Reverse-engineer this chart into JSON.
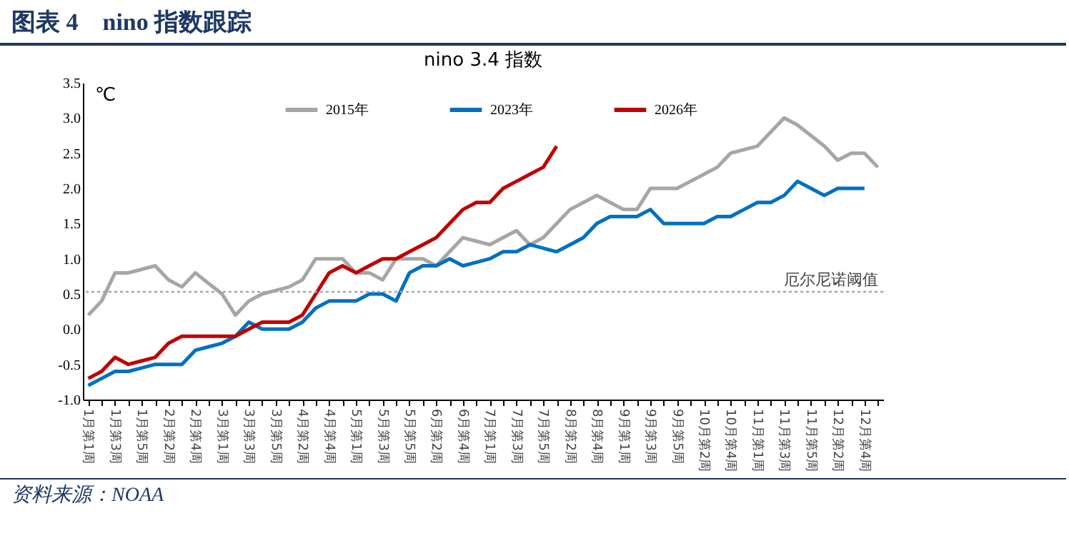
{
  "chart_data": {
    "type": "line",
    "title": "图表 4　nino 指数跟踪",
    "subtitle": "nino 3.4 指数",
    "ylabel": "℃",
    "categories": [
      "1月第1周",
      null,
      "1月第3周",
      null,
      "1月第5周",
      null,
      "2月第2周",
      null,
      "2月第4周",
      null,
      "3月第1周",
      null,
      "3月第3周",
      null,
      "3月第5周",
      null,
      "4月第2周",
      null,
      "4月第4周",
      null,
      "5月第1周",
      null,
      "5月第3周",
      null,
      "5月第5周",
      null,
      "6月第2周",
      null,
      "6月第4周",
      null,
      "7月第1周",
      null,
      "7月第3周",
      null,
      "7月第5周",
      null,
      "8月第2周",
      null,
      "8月第4周",
      null,
      "9月第1周",
      null,
      "9月第3周",
      null,
      "9月第5周",
      null,
      "10月第2周",
      null,
      "10月第4周",
      null,
      "11月第1周",
      null,
      "11月第3周",
      null,
      "11月第5周",
      null,
      "12月第2周",
      null,
      "12月第4周",
      null
    ],
    "series": [
      {
        "name": "2015年",
        "color": "#a6a6a6",
        "values": [
          0.2,
          0.4,
          0.8,
          0.8,
          0.85,
          0.9,
          0.7,
          0.6,
          0.8,
          0.65,
          0.5,
          0.2,
          0.4,
          0.5,
          0.55,
          0.6,
          0.7,
          1.0,
          1.0,
          1.0,
          0.8,
          0.8,
          0.7,
          1.0,
          1.0,
          1.0,
          0.9,
          1.1,
          1.3,
          1.25,
          1.2,
          1.3,
          1.4,
          1.2,
          1.3,
          1.5,
          1.7,
          1.8,
          1.9,
          1.8,
          1.7,
          1.7,
          2.0,
          2.0,
          2.0,
          2.1,
          2.2,
          2.3,
          2.5,
          2.55,
          2.6,
          2.8,
          3.0,
          2.9,
          2.75,
          2.6,
          2.4,
          2.5,
          2.5,
          2.3
        ]
      },
      {
        "name": "2023年",
        "color": "#0070c0",
        "values": [
          -0.8,
          -0.7,
          -0.6,
          -0.6,
          -0.55,
          -0.5,
          -0.5,
          -0.5,
          -0.3,
          -0.25,
          -0.2,
          -0.1,
          0.1,
          0.0,
          0.0,
          0.0,
          0.1,
          0.3,
          0.4,
          0.4,
          0.4,
          0.5,
          0.5,
          0.4,
          0.8,
          0.9,
          0.9,
          1.0,
          0.9,
          0.95,
          1.0,
          1.1,
          1.1,
          1.2,
          1.15,
          1.1,
          1.2,
          1.3,
          1.5,
          1.6,
          1.6,
          1.6,
          1.7,
          1.5,
          1.5,
          1.5,
          1.5,
          1.6,
          1.6,
          1.7,
          1.8,
          1.8,
          1.9,
          2.1,
          2.0,
          1.9,
          2.0,
          2.0,
          2.0,
          null
        ]
      },
      {
        "name": "2026年",
        "color": "#c00000",
        "values": [
          -0.7,
          -0.6,
          -0.4,
          -0.5,
          -0.45,
          -0.4,
          -0.2,
          -0.1,
          -0.1,
          -0.1,
          -0.1,
          -0.1,
          0.0,
          0.1,
          0.1,
          0.1,
          0.2,
          0.5,
          0.8,
          0.9,
          0.8,
          0.9,
          1.0,
          1.0,
          1.1,
          1.2,
          1.3,
          1.5,
          1.7,
          1.8,
          1.8,
          2.0,
          2.1,
          2.2,
          2.3,
          2.6,
          null,
          null,
          null,
          null,
          null,
          null,
          null,
          null,
          null,
          null,
          null,
          null,
          null,
          null,
          null,
          null,
          null,
          null,
          null,
          null,
          null,
          null,
          null,
          null
        ]
      }
    ],
    "ylim": [
      -1.0,
      3.5
    ],
    "yticks": [
      {
        "value": -1.0,
        "label": "-1.0"
      },
      -0.5,
      {
        "value": 0,
        "label": "0.0"
      },
      0.5,
      {
        "value": 1.0,
        "label": "1.0"
      },
      1.5,
      {
        "value": 2.0,
        "label": "2.0"
      },
      2.5,
      {
        "value": 3.0,
        "label": "3.0"
      },
      3.5
    ],
    "ref_lines": [
      {
        "axis": "y",
        "value": 0.53,
        "label": "厄尔尼诺阈值",
        "color": "#a6a6a6",
        "line_style": "dotted"
      }
    ],
    "grid": false,
    "legend": "top",
    "annotations": [
      "资料来源：NOAA"
    ]
  }
}
